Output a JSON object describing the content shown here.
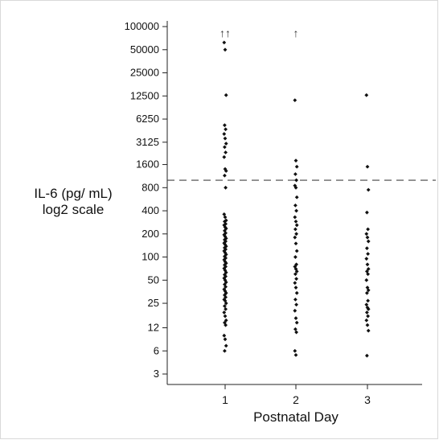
{
  "chart_data": {
    "type": "scatter",
    "title": "",
    "xlabel": "Postnatal Day",
    "ylabel_lines": [
      "IL-6 (pg/ mL)",
      "log2 scale"
    ],
    "y_scale": "log2",
    "categories": [
      "1",
      "2",
      "3"
    ],
    "ylim": [
      2.2,
      160000
    ],
    "y_ticks": [
      3,
      6,
      12,
      25,
      50,
      100,
      200,
      400,
      800,
      1600,
      3125,
      6250,
      12500,
      25000,
      50000,
      100000
    ],
    "y_tick_labels": [
      "3",
      "6",
      "12",
      "25",
      "50",
      "100",
      "200",
      "400",
      "800",
      "1600",
      "3125",
      "6250",
      "12500",
      "25000",
      "50000",
      "100000"
    ],
    "reference_line": 1000,
    "off_scale_arrows": [
      {
        "category": "1",
        "label": "↑↑"
      },
      {
        "category": "2",
        "label": "↑"
      }
    ],
    "grid": false,
    "series": [
      {
        "category": "1",
        "values": [
          62000,
          50000,
          12800,
          5200,
          4600,
          4000,
          3500,
          3000,
          2700,
          2300,
          2000,
          1400,
          1320,
          1150,
          800,
          360,
          330,
          300,
          290,
          270,
          260,
          245,
          235,
          220,
          205,
          195,
          185,
          175,
          168,
          160,
          152,
          145,
          138,
          132,
          126,
          120,
          114,
          108,
          102,
          97,
          92,
          87,
          83,
          79,
          75,
          71,
          67,
          63,
          59,
          56,
          53,
          50,
          47,
          44,
          41,
          38,
          36,
          34,
          32,
          30,
          28,
          27,
          25,
          23,
          21,
          19,
          17,
          15,
          14,
          13,
          9.5,
          8.5,
          7,
          6
        ]
      },
      {
        "category": "2",
        "values": [
          11000,
          1800,
          1500,
          1200,
          1000,
          850,
          800,
          600,
          470,
          400,
          330,
          290,
          260,
          230,
          200,
          180,
          150,
          120,
          100,
          80,
          75,
          70,
          65,
          60,
          52,
          46,
          40,
          34,
          28,
          24,
          20,
          16,
          14,
          11.5,
          10.5,
          6,
          5.3
        ]
      },
      {
        "category": "3",
        "values": [
          12800,
          1500,
          750,
          380,
          230,
          200,
          180,
          160,
          130,
          110,
          95,
          80,
          70,
          65,
          60,
          50,
          40,
          37,
          34,
          27,
          24,
          22,
          21,
          19,
          17,
          15,
          13,
          11,
          5.2
        ]
      }
    ]
  }
}
